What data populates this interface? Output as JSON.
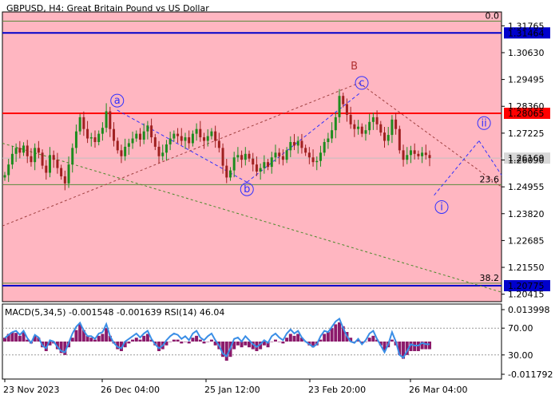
{
  "chart_data": {
    "type": "candlestick",
    "symbol": "GBPUSD",
    "timeframe": "H4",
    "title": "GBPUSD, H4:  Great Britain Pound vs US Dollar",
    "price_axis": {
      "range": [
        1.201,
        1.3235
      ],
      "ticks": [
        "1.31765",
        "1.30630",
        "1.29495",
        "1.28360",
        "1.27225",
        "1.26090",
        "1.24955",
        "1.23820",
        "1.22685",
        "1.21550",
        "1.20415"
      ]
    },
    "time_axis": {
      "ticks": [
        "23 Nov 2023",
        "26 Dec 04:00",
        "25 Jan 12:00",
        "23 Feb 20:00",
        "26 Mar 04:00"
      ]
    },
    "horizontal_levels": [
      {
        "price": 1.31464,
        "label": "1.31464",
        "color": "#0000cc"
      },
      {
        "price": 1.28065,
        "label": "1.28065",
        "color": "#ff0000"
      },
      {
        "price": 1.26169,
        "label": "1.26169",
        "color": "#c0c0c0"
      },
      {
        "price": 1.20775,
        "label": "1.20775",
        "color": "#0000cc"
      }
    ],
    "fibonacci": [
      {
        "level": "0.0",
        "price": 1.3196
      },
      {
        "level": "23.6",
        "price": 1.2505
      },
      {
        "level": "38.2",
        "price": 1.2088
      }
    ],
    "wave_labels": [
      {
        "text": "a",
        "style": "circle",
        "time_index": 0.23,
        "price": 1.286
      },
      {
        "text": "b",
        "style": "circle",
        "time_index": 0.49,
        "price": 1.2485
      },
      {
        "text": "c",
        "style": "circle",
        "time_index": 0.72,
        "price": 1.2935
      },
      {
        "text": "B",
        "style": "plain",
        "time_index": 0.705,
        "price": 1.3005
      },
      {
        "text": "i",
        "style": "circle",
        "time_index": 0.88,
        "price": 1.241
      },
      {
        "text": "ii",
        "style": "circle",
        "time_index": 0.965,
        "price": 1.2765
      }
    ],
    "close_series": [
      1.2545,
      1.259,
      1.2635,
      1.266,
      1.264,
      1.267,
      1.2625,
      1.26,
      1.266,
      1.264,
      1.2585,
      1.2555,
      1.263,
      1.261,
      1.2575,
      1.254,
      1.251,
      1.259,
      1.266,
      1.273,
      1.279,
      1.274,
      1.27,
      1.2705,
      1.2685,
      1.272,
      1.2745,
      1.2815,
      1.274,
      1.269,
      1.265,
      1.2625,
      1.2665,
      1.268,
      1.27,
      1.272,
      1.2695,
      1.273,
      1.2755,
      1.2705,
      1.2665,
      1.2625,
      1.264,
      1.2675,
      1.27,
      1.272,
      1.271,
      1.269,
      1.2705,
      1.268,
      1.272,
      1.274,
      1.2705,
      1.269,
      1.271,
      1.273,
      1.269,
      1.266,
      1.2585,
      1.2535,
      1.2565,
      1.262,
      1.263,
      1.261,
      1.2635,
      1.2615,
      1.259,
      1.256,
      1.2575,
      1.26,
      1.258,
      1.262,
      1.264,
      1.2625,
      1.261,
      1.265,
      1.2685,
      1.267,
      1.269,
      1.266,
      1.264,
      1.262,
      1.26,
      1.2605,
      1.264,
      1.2685,
      1.27,
      1.2735,
      1.279,
      1.288,
      1.2845,
      1.28,
      1.276,
      1.274,
      1.275,
      1.272,
      1.2735,
      1.277,
      1.279,
      1.276,
      1.2725,
      1.269,
      1.2715,
      1.278,
      1.274,
      1.265,
      1.261,
      1.263,
      1.265,
      1.2635,
      1.2625,
      1.264,
      1.263,
      1.2617
    ],
    "indicator": {
      "name": "MACD(5,34,5) -0.001548 -0.001639 RSI(14) 46.04",
      "axis_ticks": [
        "0.013998",
        "70.00",
        "30.00",
        "-0.011792"
      ],
      "macd_series": [
        0.2,
        0.4,
        0.5,
        0.45,
        0.3,
        0.5,
        0.1,
        -0.1,
        0.3,
        0.2,
        -0.3,
        -0.5,
        -0.2,
        -0.1,
        -0.4,
        -0.6,
        -0.7,
        -0.3,
        0.2,
        0.6,
        0.9,
        0.6,
        0.3,
        0.2,
        0.1,
        0.3,
        0.4,
        0.7,
        0.3,
        -0.1,
        -0.4,
        -0.5,
        -0.3,
        -0.1,
        0.1,
        0.2,
        0.1,
        0.3,
        0.4,
        0.1,
        -0.2,
        -0.5,
        -0.4,
        -0.2,
        0.0,
        0.1,
        0.1,
        -0.1,
        0.0,
        -0.1,
        0.2,
        0.3,
        0.1,
        -0.1,
        0.0,
        0.1,
        -0.2,
        -0.4,
        -0.8,
        -1.0,
        -0.8,
        -0.4,
        -0.2,
        -0.3,
        -0.2,
        -0.3,
        -0.4,
        -0.5,
        -0.4,
        -0.2,
        -0.3,
        0.0,
        0.1,
        0.0,
        -0.1,
        0.2,
        0.4,
        0.3,
        0.4,
        0.2,
        0.0,
        -0.2,
        -0.3,
        -0.2,
        0.1,
        0.4,
        0.5,
        0.7,
        0.9,
        1.0,
        0.8,
        0.5,
        0.2,
        0.0,
        0.1,
        -0.1,
        0.0,
        0.2,
        0.3,
        0.1,
        -0.2,
        -0.5,
        -0.3,
        0.1,
        -0.2,
        -0.7,
        -0.9,
        -0.7,
        -0.5,
        -0.5,
        -0.5,
        -0.4,
        -0.4,
        -0.4
      ],
      "rsi_series": [
        55,
        60,
        64,
        66,
        60,
        66,
        55,
        48,
        60,
        56,
        44,
        40,
        52,
        50,
        42,
        36,
        34,
        48,
        62,
        72,
        78,
        66,
        58,
        58,
        54,
        62,
        64,
        76,
        58,
        48,
        42,
        40,
        50,
        54,
        58,
        62,
        56,
        62,
        66,
        54,
        46,
        40,
        44,
        52,
        58,
        62,
        60,
        54,
        58,
        52,
        62,
        66,
        56,
        52,
        58,
        62,
        52,
        44,
        32,
        28,
        40,
        54,
        56,
        50,
        58,
        52,
        46,
        42,
        46,
        52,
        48,
        58,
        62,
        56,
        52,
        62,
        68,
        62,
        66,
        56,
        50,
        46,
        42,
        46,
        58,
        66,
        64,
        72,
        80,
        84,
        70,
        58,
        50,
        48,
        54,
        46,
        52,
        62,
        66,
        54,
        44,
        34,
        46,
        64,
        50,
        30,
        26,
        36,
        46,
        44,
        44,
        48,
        46,
        46
      ]
    }
  }
}
